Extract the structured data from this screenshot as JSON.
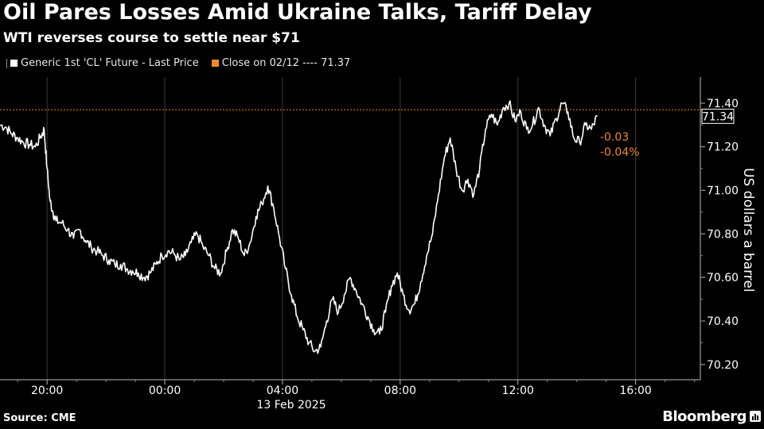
{
  "header": {
    "title": "Oil Pares Losses Amid Ukraine Talks, Tariff Delay",
    "subtitle": "WTI reverses course to settle near $71"
  },
  "legend": {
    "series_label": "Generic 1st 'CL' Future - Last Price",
    "close_label": "Close on 02/12 ---- 71.37"
  },
  "footer": {
    "source": "Source: CME",
    "brand": "Bloomberg"
  },
  "colors": {
    "background": "#000000",
    "line": "#ffffff",
    "reference": "#f08a24",
    "change": "#f08a24"
  },
  "chart_data": {
    "type": "line",
    "title": "Oil Pares Losses Amid Ukraine Talks, Tariff Delay",
    "subtitle": "WTI reverses course to settle near $71",
    "ylabel": "US dollars a barrel",
    "xlabel": "",
    "x_date_label": "13 Feb 2025",
    "y_axis_position": "right",
    "ylim": [
      70.13,
      71.52
    ],
    "xlim_hours": [
      -5.6,
      18.2
    ],
    "x_ticks": [
      {
        "hour": -4,
        "label": "20:00"
      },
      {
        "hour": 0,
        "label": "00:00"
      },
      {
        "hour": 4,
        "label": "04:00"
      },
      {
        "hour": 8,
        "label": "08:00"
      },
      {
        "hour": 12,
        "label": "12:00"
      },
      {
        "hour": 16,
        "label": "16:00"
      }
    ],
    "y_ticks": [
      70.2,
      70.4,
      70.6,
      70.8,
      71.0,
      71.2,
      71.4
    ],
    "y_tick_labels": [
      "70.20",
      "70.40",
      "70.60",
      "70.80",
      "71.00",
      "71.20",
      "71.40"
    ],
    "grid": "vertical",
    "reference_line": {
      "label": "Close on 02/12",
      "value": 71.37
    },
    "last_value": 71.34,
    "last_value_label": "71.34",
    "change_labels": [
      "-0.03",
      "-0.04%"
    ],
    "series": [
      {
        "name": "Generic 1st 'CL' Future - Last Price",
        "x_hour": [
          -5.6,
          -5.4,
          -5.2,
          -5.0,
          -4.8,
          -4.6,
          -4.4,
          -4.2,
          -4.1,
          -4.0,
          -3.9,
          -3.8,
          -3.7,
          -3.5,
          -3.3,
          -3.1,
          -2.9,
          -2.7,
          -2.5,
          -2.3,
          -2.1,
          -1.9,
          -1.7,
          -1.5,
          -1.3,
          -1.1,
          -0.9,
          -0.7,
          -0.5,
          -0.3,
          -0.1,
          0.1,
          0.3,
          0.5,
          0.7,
          0.9,
          1.1,
          1.3,
          1.5,
          1.7,
          1.9,
          2.1,
          2.3,
          2.5,
          2.7,
          2.9,
          3.1,
          3.3,
          3.5,
          3.7,
          3.9,
          4.1,
          4.3,
          4.5,
          4.7,
          4.9,
          5.1,
          5.3,
          5.5,
          5.7,
          5.9,
          6.1,
          6.3,
          6.5,
          6.7,
          6.9,
          7.1,
          7.3,
          7.5,
          7.7,
          7.9,
          8.1,
          8.3,
          8.5,
          8.7,
          8.9,
          9.1,
          9.3,
          9.5,
          9.7,
          9.9,
          10.1,
          10.3,
          10.5,
          10.7,
          10.9,
          11.1,
          11.3,
          11.5,
          11.7,
          11.9,
          12.1,
          12.3,
          12.5,
          12.7,
          12.9,
          13.1,
          13.3,
          13.5,
          13.7,
          13.9,
          14.1,
          14.3,
          14.5,
          14.7
        ],
        "values": [
          71.3,
          71.29,
          71.26,
          71.24,
          71.22,
          71.21,
          71.2,
          71.25,
          71.28,
          71.1,
          70.95,
          70.9,
          70.86,
          70.85,
          70.82,
          70.78,
          70.82,
          70.77,
          70.74,
          70.72,
          70.7,
          70.68,
          70.66,
          70.66,
          70.64,
          70.63,
          70.62,
          70.6,
          70.62,
          70.66,
          70.7,
          70.72,
          70.71,
          70.68,
          70.7,
          70.76,
          70.8,
          70.74,
          70.7,
          70.64,
          70.62,
          70.72,
          70.82,
          70.78,
          70.7,
          70.76,
          70.88,
          70.94,
          71.02,
          70.92,
          70.78,
          70.64,
          70.52,
          70.42,
          70.36,
          70.3,
          70.26,
          70.28,
          70.4,
          70.5,
          70.44,
          70.52,
          70.6,
          70.54,
          70.48,
          70.42,
          70.36,
          70.34,
          70.44,
          70.56,
          70.62,
          70.52,
          70.45,
          70.48,
          70.58,
          70.7,
          70.8,
          70.98,
          71.15,
          71.24,
          71.1,
          71.0,
          71.05,
          70.98,
          71.1,
          71.28,
          71.35,
          71.3,
          71.38,
          71.4,
          71.32,
          71.36,
          71.28,
          71.3,
          71.38,
          71.3,
          71.25,
          71.33,
          71.4,
          71.36,
          71.24,
          71.22,
          71.3,
          71.28,
          71.34
        ]
      }
    ]
  }
}
